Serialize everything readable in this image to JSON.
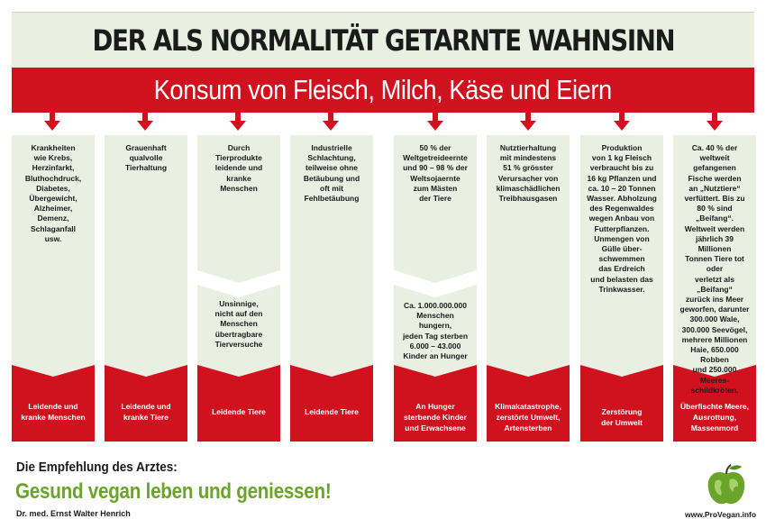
{
  "title": "DER ALS NORMALITÄT GETARNTE WAHNSINN",
  "banner": "Konsum von Fleisch, Milch, Käse und Eiern",
  "columns": [
    {
      "text": "Krankheiten\nwie Krebs,\nHerzinfarkt,\nBluthochdruck,\nDiabetes,\nÜbergewicht,\nAlzheimer,\nDemenz,\nSchlaganfall\nusw.",
      "text2": "",
      "footer": "Leidende und\nkranke Menschen"
    },
    {
      "text": "Grauenhaft\nqualvolle\nTierhaltung",
      "text2": "",
      "footer": "Leidende und\nkranke Tiere"
    },
    {
      "text": "Durch\nTierprodukte\nleidende und\nkranke\nMenschen",
      "text2": "Unsinnige,\nnicht auf den\nMenschen\nübertragbare\nTierversuche",
      "footer": "Leidende Tiere"
    },
    {
      "text": "Industrielle\nSchlachtung,\nteilweise ohne\nBetäubung und\noft mit\nFehlbetäubung",
      "text2": "",
      "footer": "Leidende Tiere"
    },
    {
      "text": "50 % der\nWeltgetreideernte\nund 90 – 98 % der\nWeltsojaernte\nzum Mästen\nder Tiere",
      "text2": "Ca. 1.000.000.000\nMenschen hungern,\njeden Tag sterben\n6.000 – 43.000\nKinder an Hunger",
      "footer": "An Hunger\nsterbende Kinder\nund Erwachsene"
    },
    {
      "text": "Nutztierhaltung\nmit mindestens\n51 % grösster\nVerursacher von\nklimaschädlichen\nTreibhausgasen",
      "text2": "",
      "footer": "Klimakatastrophe,\nzerstörte Umwelt,\nArtensterben"
    },
    {
      "text": "Produktion\nvon 1 kg Fleisch\nverbraucht bis zu\n16 kg Pflanzen und\nca. 10 – 20 Tonnen\nWasser. Abholzung\ndes Regenwaldes\nwegen Anbau von\nFutterpflanzen.\nUnmengen von\nGülle über-\nschwemmen\ndas Erdreich\nund belasten das\nTrinkwasser.",
      "text2": "",
      "footer": "Zerstörung\nder Umwelt"
    },
    {
      "text": "Ca. 40 % der\nweltweit gefangenen\nFische werden\nan „Nutztiere“\nverfüttert. Bis zu\n80 % sind „Beifang“.\nWeltweit werden\njährlich 39 Millionen\nTonnen Tiere tot oder\nverletzt als „Beifang“\nzurück ins Meer\ngeworfen, darunter\n300.000 Wale,\n300.000 Seevögel,\nmehrere Millionen\nHaie, 650.000 Robben\nund 250.000 Meeres-\nschildkröten.",
      "text2": "",
      "footer": "Überfischte Meere,\nAusrottung,\nMassenmord"
    }
  ],
  "recommendation": {
    "label": "Die Empfehlung des Arztes:",
    "slogan": "Gesund vegan leben und geniessen!",
    "author": "Dr. med. Ernst Walter Henrich"
  },
  "site": "www.ProVegan.info",
  "logo_icon": "apple-globe-icon",
  "colors": {
    "red": "#d0121f",
    "panel": "#e9efe1",
    "green": "#6aa42a"
  }
}
